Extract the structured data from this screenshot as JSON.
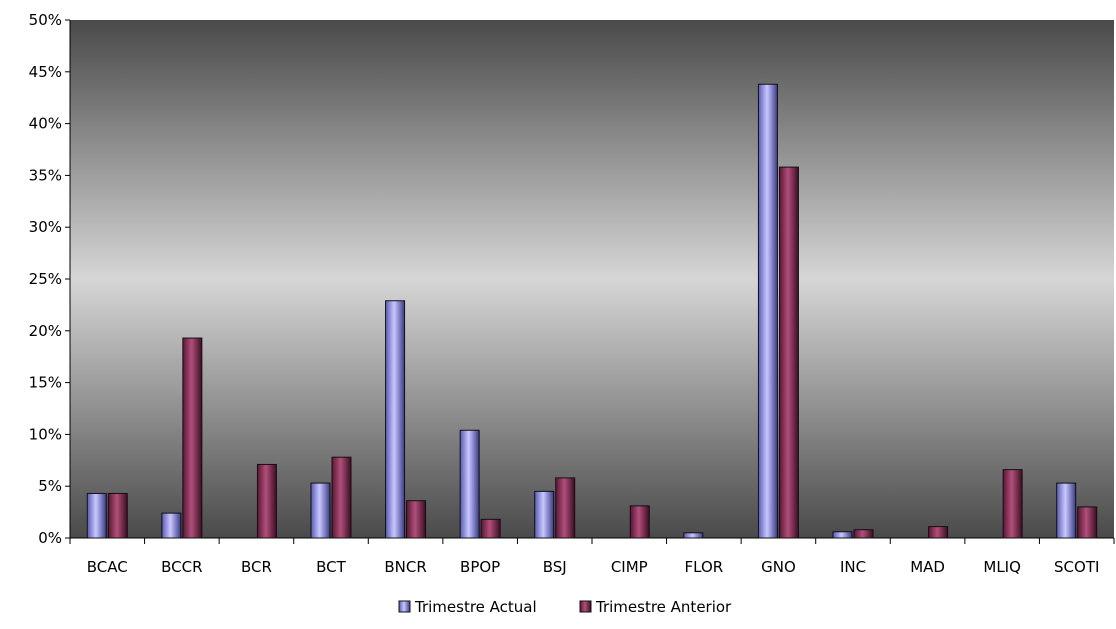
{
  "chart_data": {
    "type": "bar",
    "categories": [
      "BCAC",
      "BCCR",
      "BCR",
      "BCT",
      "BNCR",
      "BPOP",
      "BSJ",
      "CIMP",
      "FLOR",
      "GNO",
      "INC",
      "MAD",
      "MLIQ",
      "SCOTI"
    ],
    "series": [
      {
        "name": "Trimestre Actual",
        "values": [
          4.3,
          2.4,
          0,
          5.3,
          22.9,
          10.4,
          4.5,
          0,
          0.5,
          43.8,
          0.6,
          0,
          0,
          5.3
        ],
        "color": "#8f8fe8"
      },
      {
        "name": "Trimestre Anterior",
        "values": [
          4.3,
          19.3,
          7.1,
          7.8,
          3.6,
          1.8,
          5.8,
          3.1,
          0,
          35.8,
          0.8,
          1.1,
          6.6,
          3.0
        ],
        "color": "#8a2a5a"
      }
    ],
    "ylim": [
      0,
      50
    ],
    "yticks": [
      "0%",
      "5%",
      "10%",
      "15%",
      "20%",
      "25%",
      "30%",
      "35%",
      "40%",
      "45%",
      "50%"
    ],
    "legend_position": "bottom"
  }
}
